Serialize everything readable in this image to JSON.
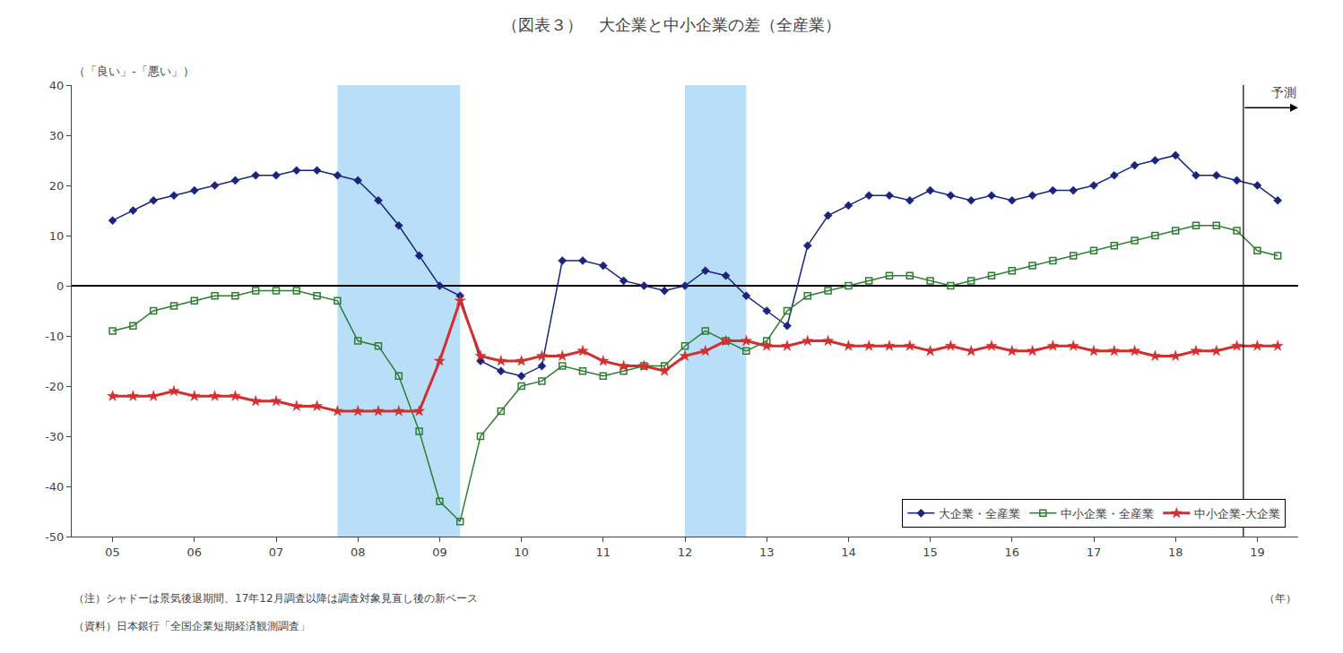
{
  "chart_data": {
    "type": "line",
    "title": "（図表３）　大企業と中小企業の差（全産業）",
    "y_label": "（「良い」-「悪い」）",
    "x_unit_label": "（年）",
    "notes": [
      "（注）シャドーは景気後退期間、17年12月調査以降は調査対象見直し後の新ベース",
      "（資料）日本銀行「全国企業短期経済観測調査」"
    ],
    "forecast_label": "予測",
    "forecast_start": 18.83,
    "shadow_regions": {
      "color": "#add8f7",
      "ranges": [
        [
          7.75,
          9.25
        ],
        [
          12.0,
          12.75
        ]
      ]
    },
    "x": [
      5.0,
      5.25,
      5.5,
      5.75,
      6.0,
      6.25,
      6.5,
      6.75,
      7.0,
      7.25,
      7.5,
      7.75,
      8.0,
      8.25,
      8.5,
      8.75,
      9.0,
      9.25,
      9.5,
      9.75,
      10.0,
      10.25,
      10.5,
      10.75,
      11.0,
      11.25,
      11.5,
      11.75,
      12.0,
      12.25,
      12.5,
      12.75,
      13.0,
      13.25,
      13.5,
      13.75,
      14.0,
      14.25,
      14.5,
      14.75,
      15.0,
      15.25,
      15.5,
      15.75,
      16.0,
      16.25,
      16.5,
      16.75,
      17.0,
      17.25,
      17.5,
      17.75,
      18.0,
      18.25,
      18.5,
      18.75,
      19.0,
      19.25
    ],
    "series": [
      {
        "name": "大企業・全産業",
        "color": "#1a237e",
        "marker": "diamond",
        "line_style": "solid",
        "values": [
          13,
          15,
          17,
          18,
          19,
          20,
          21,
          22,
          22,
          23,
          23,
          22,
          21,
          17,
          12,
          6,
          0,
          -2,
          -15,
          -17,
          -18,
          -16,
          5,
          5,
          4,
          1,
          0,
          -1,
          0,
          3,
          2,
          -2,
          -5,
          -8,
          8,
          14,
          16,
          18,
          18,
          17,
          19,
          18,
          17,
          18,
          17,
          18,
          19,
          19,
          20,
          22,
          24,
          25,
          26,
          22,
          22,
          21,
          20,
          17
        ]
      },
      {
        "name": "中小企業・全産業",
        "color": "#2e7d32",
        "marker": "square-open",
        "line_style": "solid",
        "values": [
          -9,
          -8,
          -5,
          -4,
          -3,
          -2,
          -2,
          -1,
          -1,
          -1,
          -2,
          -3,
          -11,
          -12,
          -18,
          -29,
          -43,
          -47,
          -30,
          -25,
          -20,
          -19,
          -16,
          -17,
          -18,
          -17,
          -16,
          -16,
          -12,
          -9,
          -11,
          -13,
          -11,
          -5,
          -2,
          -1,
          0,
          1,
          2,
          2,
          1,
          0,
          1,
          2,
          3,
          4,
          5,
          6,
          7,
          8,
          9,
          10,
          11,
          12,
          12,
          11,
          7,
          6
        ]
      },
      {
        "name": "中小企業-大企業",
        "color": "#d32f2f",
        "marker": "star",
        "line_style": "solid",
        "values": [
          -22,
          -22,
          -22,
          -21,
          -22,
          -22,
          -22,
          -23,
          -23,
          -24,
          -24,
          -25,
          -25,
          -25,
          -25,
          -25,
          -15,
          -3,
          -14,
          -15,
          -15,
          -14,
          -14,
          -13,
          -15,
          -16,
          -16,
          -17,
          -14,
          -13,
          -11,
          -11,
          -12,
          -12,
          -11,
          -11,
          -12,
          -12,
          -12,
          -12,
          -13,
          -12,
          -13,
          -12,
          -13,
          -13,
          -12,
          -12,
          -13,
          -13,
          -13,
          -14,
          -14,
          -13,
          -13,
          -12,
          -12,
          -12
        ]
      }
    ],
    "xlim": [
      4.5,
      19.5
    ],
    "xticks": [
      {
        "value": 5,
        "label": "05"
      },
      {
        "value": 6,
        "label": "06"
      },
      {
        "value": 7,
        "label": "07"
      },
      {
        "value": 8,
        "label": "08"
      },
      {
        "value": 9,
        "label": "09"
      },
      10,
      11,
      12,
      13,
      14,
      15,
      16,
      17,
      18,
      19
    ],
    "ylim": [
      -50,
      40
    ],
    "yticks": [
      -50,
      -40,
      -30,
      -20,
      -10,
      0,
      10,
      20,
      30,
      40
    ],
    "grid": false,
    "legend": "lower right"
  }
}
